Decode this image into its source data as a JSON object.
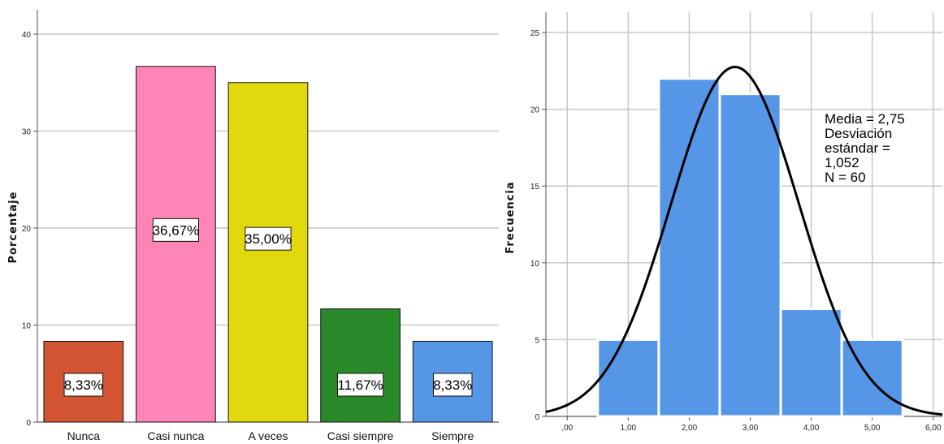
{
  "chart_data": [
    {
      "type": "bar",
      "ylabel": "Porcentaje",
      "xlabel": "",
      "categories": [
        "Nunca",
        "Casi nunca",
        "A veces",
        "Casi siempre",
        "Siempre"
      ],
      "values": [
        8.33,
        36.67,
        35.0,
        11.67,
        8.33
      ],
      "data_labels": [
        "8,33%",
        "36,67%",
        "35,00%",
        "11,67%",
        "8,33%"
      ],
      "colors": [
        "#d35433",
        "#ff85b6",
        "#e2d80e",
        "#2a8a2a",
        "#5596e6"
      ],
      "ylim": [
        0,
        40
      ],
      "yticks": [
        0,
        10,
        20,
        30,
        40
      ],
      "grid": true
    },
    {
      "type": "bar",
      "subtype": "histogram",
      "ylabel": "Frecuencia",
      "xlabel": "",
      "bins": [
        1,
        2,
        3,
        4,
        5
      ],
      "values": [
        5,
        22,
        21,
        7,
        5
      ],
      "bar_color": "#5596e6",
      "xlim": [
        -0.35,
        6.15
      ],
      "xticks": [
        0,
        1,
        2,
        3,
        4,
        5,
        6
      ],
      "xtick_labels": [
        ",00",
        "1,00",
        "2,00",
        "3,00",
        "4,00",
        "5,00",
        "6,00"
      ],
      "ylim": [
        0,
        25
      ],
      "yticks": [
        0,
        5,
        10,
        15,
        20,
        25
      ],
      "grid": true,
      "normal_curve": {
        "mean": 2.75,
        "sd": 1.052,
        "n": 60,
        "bin_width": 1
      },
      "stats_lines": [
        "Media = 2,75",
        "Desviación",
        "estándar =",
        "1,052",
        "N = 60"
      ]
    }
  ]
}
